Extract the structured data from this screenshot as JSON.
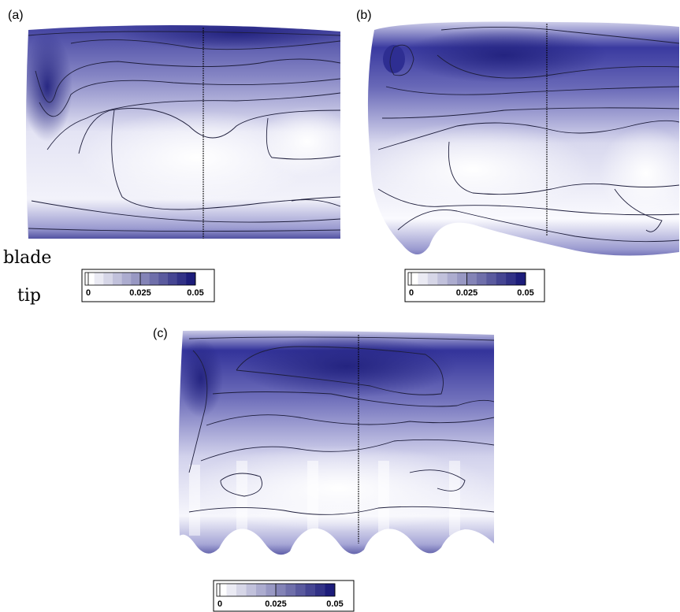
{
  "panels": {
    "a": {
      "label": "(a)"
    },
    "b": {
      "label": "(b)"
    },
    "c": {
      "label": "(c)"
    }
  },
  "side_label": {
    "line1": "blade",
    "line2": "tip"
  },
  "colorbar": {
    "ticks": [
      "0",
      "0.025",
      "0.05"
    ],
    "min": 0,
    "max": 0.05,
    "levels": 12,
    "color_low": "#ffffff",
    "color_high": "#1c1c7a"
  },
  "colors": {
    "deep": "#24248a",
    "mid": "#5a5ab0",
    "light": "#b8b8dc",
    "contour": "#1e1e3c"
  }
}
